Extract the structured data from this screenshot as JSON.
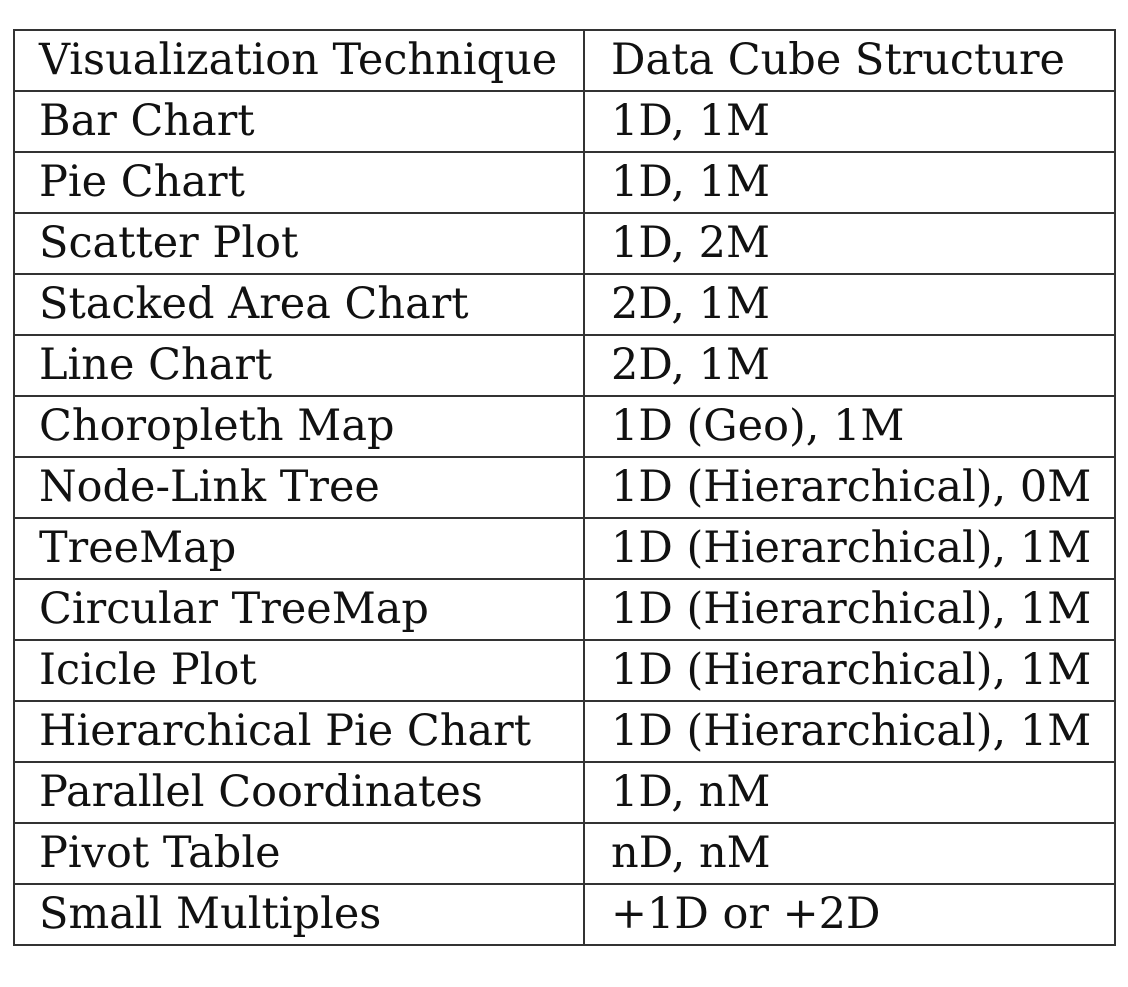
{
  "table": {
    "headers": [
      "Visualization Technique",
      "Data Cube Structure"
    ],
    "rows": [
      [
        "Bar Chart",
        "1D, 1M"
      ],
      [
        "Pie Chart",
        "1D, 1M"
      ],
      [
        "Scatter Plot",
        "1D, 2M"
      ],
      [
        "Stacked Area Chart",
        "2D, 1M"
      ],
      [
        "Line Chart",
        "2D, 1M"
      ],
      [
        "Choropleth Map",
        "1D (Geo), 1M"
      ],
      [
        "Node-Link Tree",
        "1D (Hierarchical), 0M"
      ],
      [
        "TreeMap",
        "1D (Hierarchical), 1M"
      ],
      [
        "Circular TreeMap",
        "1D (Hierarchical), 1M"
      ],
      [
        "Icicle Plot",
        "1D (Hierarchical), 1M"
      ],
      [
        "Hierarchical Pie Chart",
        "1D (Hierarchical), 1M"
      ],
      [
        "Parallel Coordinates",
        "1D, nM"
      ],
      [
        "Pivot Table",
        "nD, nM"
      ],
      [
        "Small Multiples",
        "+1D or +2D"
      ]
    ]
  }
}
